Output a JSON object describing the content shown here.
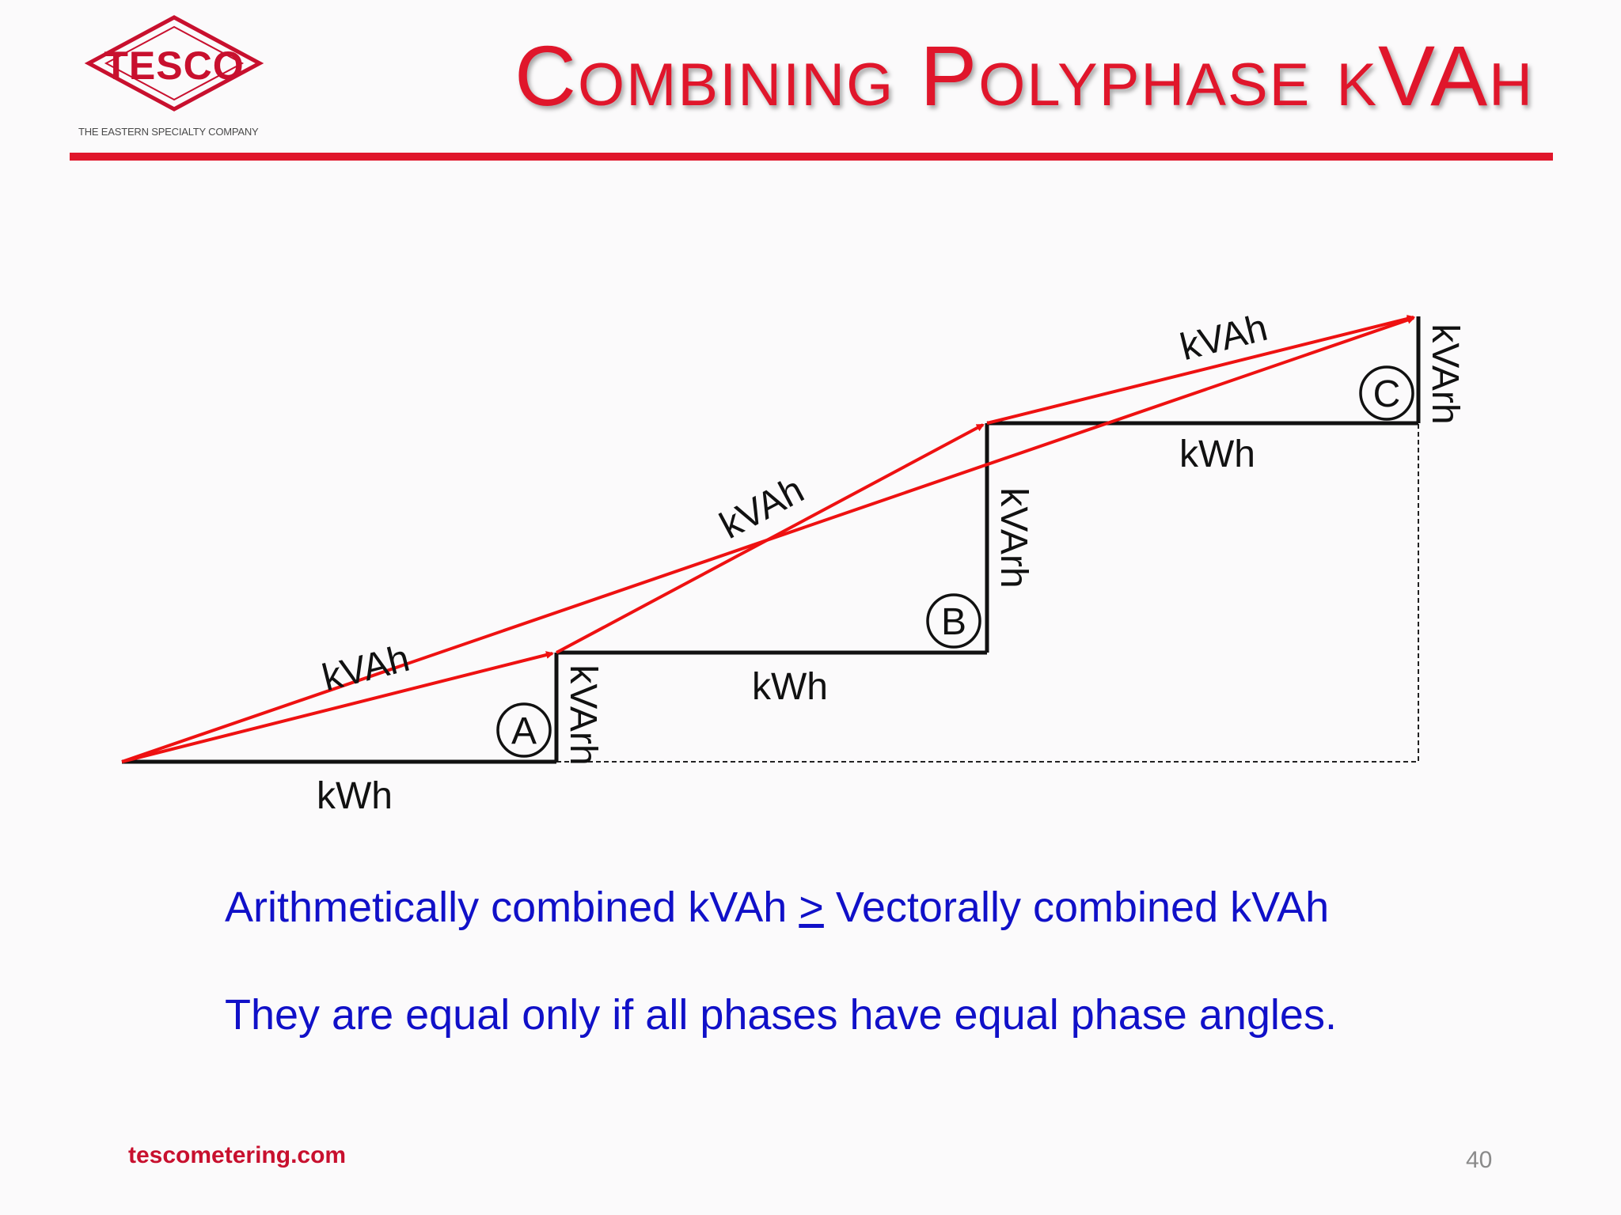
{
  "header": {
    "logo_text": "TESCO",
    "logo_tagline": "THE EASTERN SPECIALTY COMPANY",
    "title": "Combining Polyphase kVAh"
  },
  "diagram": {
    "phase_labels": [
      "A",
      "B",
      "C"
    ],
    "kwh_label": "kWh",
    "kvarh_label": "kVArh",
    "kvah_label": "kVAh"
  },
  "statements": {
    "line1_before": "Arithmetically combined kVAh ",
    "line1_symbol": ">",
    "line1_after": " Vectorally combined kVAh",
    "line2": "They are equal only if all phases have equal phase angles."
  },
  "footer": {
    "url": "tescometering.com",
    "page_number": "40"
  },
  "colors": {
    "brand_red": "#e0162b",
    "statement_blue": "#1010c8",
    "vector_red": "#ee1111"
  }
}
